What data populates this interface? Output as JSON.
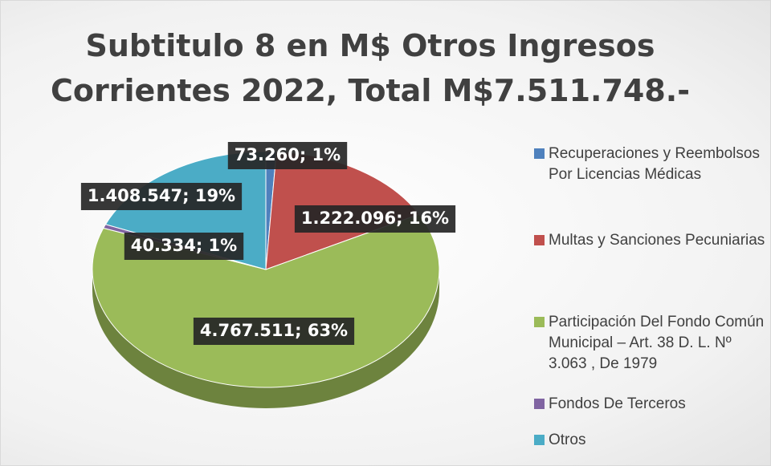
{
  "chart_data": {
    "type": "pie",
    "title": "Subtitulo 8 en M$ Otros Ingresos Corrientes 2022, Total M$7.511.748.-",
    "categories": [
      "Recuperaciones y Reembolsos Por Licencias Médicas",
      "Multas y Sanciones Pecuniarias",
      "Participación Del Fondo Común Municipal – Art. 38 D. L.  Nº 3.063 , De 1979",
      "Fondos De Terceros",
      "Otros"
    ],
    "values": [
      73260,
      1222096,
      4767511,
      40334,
      1408547
    ],
    "value_labels": [
      "73.260; 1%",
      "1.222.096; 16%",
      "4.767.511; 63%",
      "40.334; 1%",
      "1.408.547; 19%"
    ],
    "colors": [
      "#4f81bd",
      "#c0504d",
      "#9bbb59",
      "#8064a2",
      "#4bacc6"
    ],
    "legend": "right"
  }
}
